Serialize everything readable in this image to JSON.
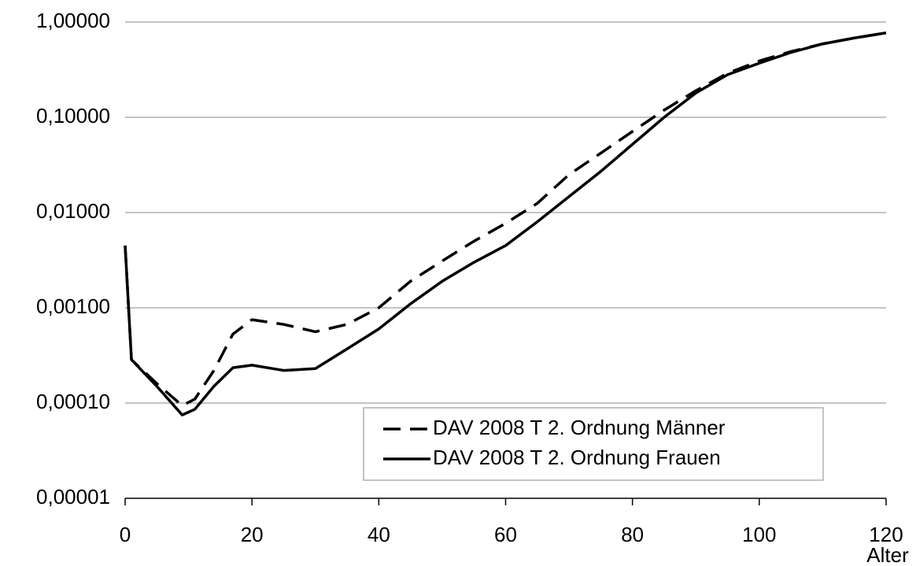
{
  "chart_data": {
    "type": "line",
    "x_label": "Alter",
    "x": [
      0,
      1,
      5,
      9,
      11,
      14,
      17,
      20,
      25,
      30,
      35,
      40,
      45,
      50,
      55,
      60,
      65,
      70,
      75,
      80,
      85,
      90,
      95,
      100,
      105,
      110,
      115,
      120
    ],
    "series": [
      {
        "name": "DAV 2008 T 2. Ordnung Männer",
        "color": "#000000",
        "dash": "dashed",
        "values": [
          0.0045,
          0.000285,
          0.00016,
          9.4e-05,
          0.00011,
          0.00022,
          0.00053,
          0.00075,
          0.00067,
          0.00056,
          0.00067,
          0.001,
          0.0019,
          0.0031,
          0.005,
          0.0077,
          0.0125,
          0.025,
          0.042,
          0.071,
          0.119,
          0.19,
          0.29,
          0.39,
          0.49,
          0.59,
          0.68,
          0.77
        ]
      },
      {
        "name": "DAV 2008 T 2. Ordnung Frauen",
        "color": "#000000",
        "dash": "solid",
        "values": [
          0.0045,
          0.000285,
          0.00015,
          7.5e-05,
          8.6e-05,
          0.00015,
          0.000235,
          0.00025,
          0.00022,
          0.00023,
          0.00037,
          0.0006,
          0.0011,
          0.0019,
          0.003,
          0.0045,
          0.008,
          0.0147,
          0.027,
          0.052,
          0.1,
          0.18,
          0.28,
          0.37,
          0.48,
          0.59,
          0.68,
          0.77
        ]
      }
    ],
    "xlim": [
      0,
      120
    ],
    "xticks": [
      0,
      20,
      40,
      60,
      80,
      100,
      120
    ],
    "ylim": [
      1e-05,
      1
    ],
    "y_log": true,
    "yticks": [
      {
        "value": 1e-05,
        "label": "0,00001"
      },
      {
        "value": 0.0001,
        "label": "0,00010"
      },
      {
        "value": 0.001,
        "label": "0,00100"
      },
      {
        "value": 0.01,
        "label": "0,01000"
      },
      {
        "value": 0.1,
        "label": "0,10000"
      },
      {
        "value": 1,
        "label": "1,00000"
      }
    ],
    "grid": true,
    "legend": "lower right"
  }
}
